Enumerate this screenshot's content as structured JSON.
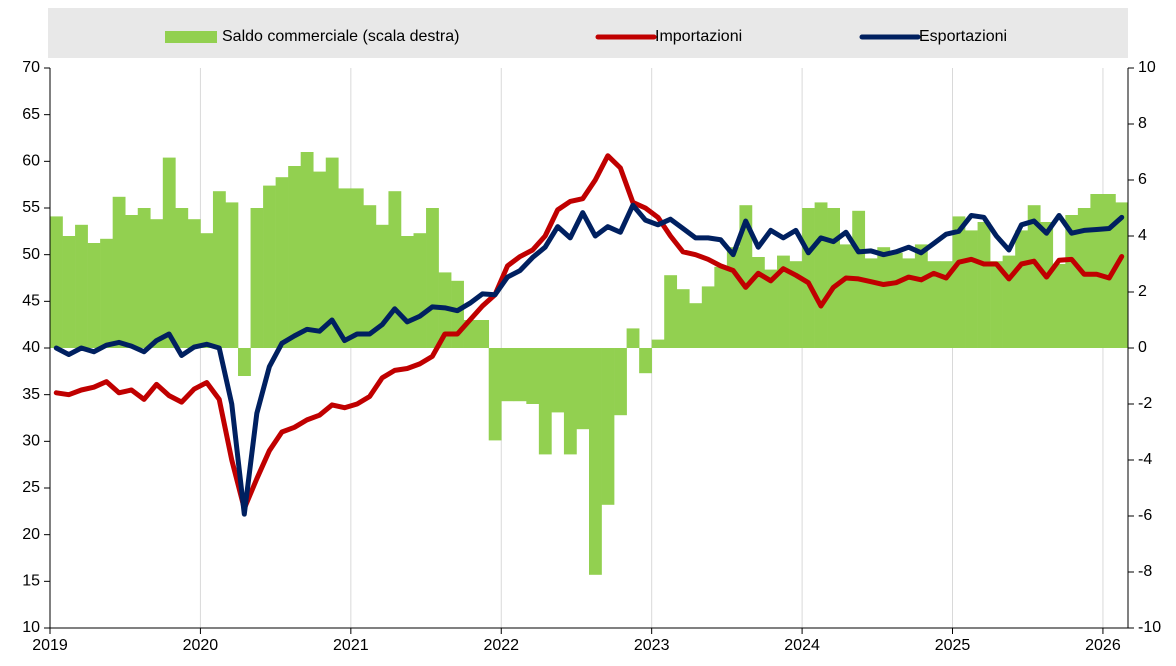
{
  "chart_data": {
    "type": "combo",
    "categories": [
      "2019",
      null,
      null,
      null,
      null,
      null,
      null,
      null,
      null,
      null,
      null,
      null,
      "2020",
      null,
      null,
      null,
      null,
      null,
      null,
      null,
      null,
      null,
      null,
      null,
      "2021",
      null,
      null,
      null,
      null,
      null,
      null,
      null,
      null,
      null,
      null,
      null,
      "2022",
      null,
      null,
      null,
      null,
      null,
      null,
      null,
      null,
      null,
      null,
      null,
      "2023",
      null,
      null,
      null,
      null,
      null,
      null,
      null,
      null,
      null,
      null,
      null,
      "2024",
      null,
      null,
      null,
      null,
      null,
      null,
      null,
      null,
      null,
      null,
      null,
      "2025",
      null,
      null,
      null,
      null,
      null,
      null,
      null,
      null,
      null,
      null,
      null,
      "2026",
      null
    ],
    "series": [
      {
        "name": "Saldo commerciale (scala destra)",
        "type": "bar",
        "axis": "y2",
        "color": "#92d050",
        "values": [
          4.7,
          4.0,
          4.4,
          3.75,
          3.9,
          5.4,
          4.75,
          5.0,
          4.6,
          6.8,
          5.0,
          4.6,
          4.1,
          5.6,
          5.2,
          -1.0,
          5.0,
          5.8,
          6.1,
          6.5,
          7.0,
          6.3,
          6.8,
          5.7,
          5.7,
          5.1,
          4.4,
          5.6,
          4.0,
          4.1,
          5.0,
          2.7,
          2.4,
          1.0,
          1.0,
          -3.3,
          -1.9,
          -1.9,
          -2.0,
          -3.8,
          -2.3,
          -3.8,
          -2.9,
          -8.1,
          -5.6,
          -2.4,
          0.7,
          -0.9,
          0.3,
          2.6,
          2.1,
          1.6,
          2.2,
          2.9,
          3.6,
          5.1,
          3.25,
          2.8,
          3.3,
          3.1,
          5.0,
          5.2,
          5.0,
          3.7,
          4.9,
          3.2,
          3.6,
          3.4,
          3.2,
          3.7,
          3.1,
          3.1,
          4.7,
          4.2,
          4.5,
          3.1,
          3.3,
          4.2,
          5.1,
          4.5,
          3.0,
          4.75,
          5.0,
          5.5,
          5.5,
          5.2
        ]
      },
      {
        "name": "Importazioni",
        "type": "line",
        "color": "#c00000",
        "values": [
          35.2,
          35.0,
          35.5,
          35.8,
          36.4,
          35.2,
          35.5,
          34.5,
          36.1,
          34.9,
          34.2,
          35.6,
          36.3,
          34.5,
          28.0,
          22.8,
          26.0,
          29.0,
          31.0,
          31.5,
          32.3,
          32.8,
          33.9,
          33.6,
          34.0,
          34.8,
          36.8,
          37.6,
          37.8,
          38.3,
          39.1,
          41.5,
          41.5,
          43.0,
          44.5,
          45.7,
          48.8,
          49.8,
          50.5,
          52.0,
          54.8,
          55.7,
          56.0,
          58.0,
          60.6,
          59.3,
          55.6,
          55.0,
          54.0,
          52.0,
          50.3,
          50.0,
          49.5,
          48.8,
          48.3,
          46.5,
          48.0,
          47.2,
          48.5,
          47.8,
          47.0,
          44.5,
          46.5,
          47.5,
          47.4,
          47.1,
          46.8,
          47.0,
          47.6,
          47.3,
          48.0,
          47.5,
          49.2,
          49.5,
          49.0,
          49.0,
          47.4,
          49.0,
          49.3,
          47.6,
          49.4,
          49.5,
          47.9,
          47.9,
          47.5,
          49.8
        ]
      },
      {
        "name": "Esportazioni",
        "type": "line",
        "color": "#002060",
        "values": [
          40.0,
          39.3,
          40.0,
          39.6,
          40.3,
          40.6,
          40.2,
          39.6,
          40.8,
          41.5,
          39.2,
          40.1,
          40.4,
          40.0,
          34.0,
          22.2,
          33.0,
          38.0,
          40.5,
          41.3,
          42.0,
          41.8,
          43.0,
          40.8,
          41.5,
          41.5,
          42.5,
          44.2,
          42.8,
          43.4,
          44.4,
          44.3,
          44.0,
          44.8,
          45.8,
          45.7,
          47.6,
          48.3,
          49.7,
          50.8,
          53.0,
          51.8,
          54.5,
          52.0,
          53.0,
          52.4,
          55.3,
          53.7,
          53.2,
          53.8,
          52.8,
          51.8,
          51.8,
          51.6,
          50.0,
          53.6,
          50.8,
          52.6,
          51.8,
          52.6,
          50.2,
          51.8,
          51.4,
          52.4,
          50.3,
          50.4,
          50.0,
          50.3,
          50.8,
          50.2,
          51.2,
          52.2,
          52.5,
          54.2,
          54.0,
          52.0,
          50.5,
          53.2,
          53.6,
          52.3,
          54.2,
          52.3,
          52.6,
          52.7,
          52.8,
          54.0
        ]
      }
    ],
    "ylim": [
      10,
      70
    ],
    "yticks": [
      10,
      15,
      20,
      25,
      30,
      35,
      40,
      45,
      50,
      55,
      60,
      65,
      70
    ],
    "y2lim": [
      -10,
      10
    ],
    "y2ticks": [
      -10,
      -8,
      -6,
      -4,
      -2,
      0,
      2,
      4,
      6,
      8,
      10
    ],
    "grid": true,
    "legend": "top"
  }
}
